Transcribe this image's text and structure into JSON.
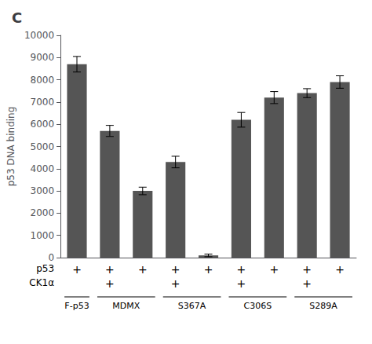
{
  "chart_data": {
    "type": "bar",
    "title": "C",
    "ylabel": "p53 DNA binding",
    "categories": [
      null,
      null,
      null,
      null,
      null,
      null,
      null,
      null,
      null
    ],
    "values": [
      8700,
      5700,
      3000,
      4300,
      100,
      6200,
      7200,
      7400,
      7900
    ],
    "errors": [
      350,
      250,
      170,
      260,
      60,
      330,
      270,
      200,
      280
    ],
    "color": "#555555",
    "ylim": [
      0,
      10000
    ],
    "yticks": [
      0,
      1000,
      2000,
      3000,
      4000,
      5000,
      6000,
      7000,
      8000,
      9000,
      10000
    ],
    "tick_labels": "y",
    "grid": false,
    "annotations": {
      "rows": [
        {
          "label": "p53",
          "marks": [
            "+",
            "+",
            "+",
            "+",
            "+",
            "+",
            "+",
            "+",
            "+"
          ]
        },
        {
          "label": "CK1α",
          "marks": [
            null,
            "+",
            null,
            "+",
            null,
            "+",
            null,
            "+",
            null
          ]
        }
      ],
      "groups": [
        {
          "label": "F-p53",
          "first": 0,
          "last": 0
        },
        {
          "label": "MDMX",
          "first": 1,
          "last": 2
        },
        {
          "label": "S367A",
          "first": 3,
          "last": 4
        },
        {
          "label": "C306S",
          "first": 5,
          "last": 6
        },
        {
          "label": "S289A",
          "first": 7,
          "last": 8
        }
      ]
    }
  }
}
